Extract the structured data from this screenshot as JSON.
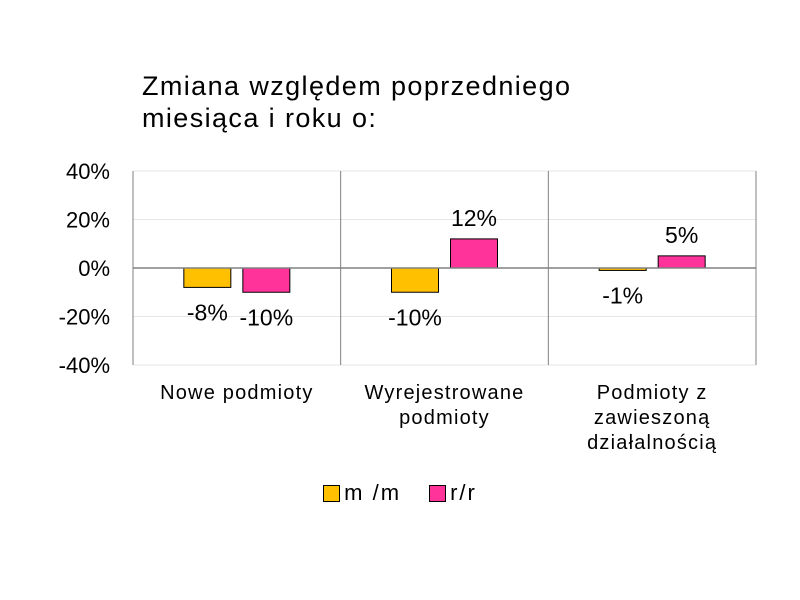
{
  "chart_data": {
    "type": "bar",
    "title_lines": [
      "Zmiana względem poprzedniego",
      "miesiąca i roku o:"
    ],
    "categories": [
      [
        "Nowe podmioty"
      ],
      [
        "Wyrejestrowane",
        "podmioty"
      ],
      [
        "Podmioty z",
        "zawieszoną",
        "działalnością"
      ]
    ],
    "series": [
      {
        "name": "m /m",
        "color": "#FFC000",
        "values": [
          -8,
          -10,
          -1
        ],
        "labels": [
          "-8%",
          "-10%",
          "-1%"
        ]
      },
      {
        "name": "r/r",
        "color": "#FF3399",
        "values": [
          -10,
          12,
          5
        ],
        "labels": [
          "-10%",
          "12%",
          "5%"
        ]
      }
    ],
    "ylim": [
      -40,
      40
    ],
    "yticks": [
      40,
      20,
      0,
      -20,
      -40
    ],
    "ytick_labels": [
      "40%",
      "20%",
      "0%",
      "-20%",
      "-40%"
    ],
    "grid": true,
    "legend": "bottom"
  }
}
